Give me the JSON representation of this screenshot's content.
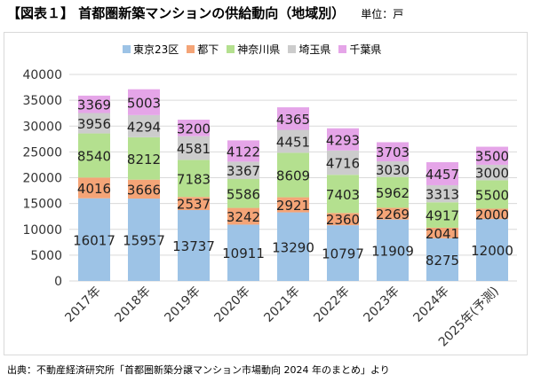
{
  "header": {
    "title": "【図表１】 首都圏新築マンションの供給動向（地域別）",
    "unit": "単位：戸"
  },
  "source_note": "出典：不動産経済研究所「首都圏新築分譲マンション市場動向 2024 年のまとめ」より",
  "chart_data": {
    "type": "bar",
    "stacked": true,
    "categories": [
      "2017年",
      "2018年",
      "2019年",
      "2020年",
      "2021年",
      "2022年",
      "2023年",
      "2024年",
      "2025年(予測)"
    ],
    "series": [
      {
        "name": "東京23区",
        "color": "#9DC3E6",
        "values": [
          16017,
          15957,
          13737,
          10911,
          13290,
          10797,
          11909,
          8275,
          12000
        ]
      },
      {
        "name": "都下",
        "color": "#F4A477",
        "values": [
          4016,
          3666,
          2537,
          3242,
          2921,
          2360,
          2269,
          2041,
          2000
        ]
      },
      {
        "name": "神奈川県",
        "color": "#B4E08F",
        "values": [
          8540,
          8212,
          7183,
          5586,
          8609,
          7403,
          5962,
          4917,
          5500
        ]
      },
      {
        "name": "埼玉県",
        "color": "#CCCCCC",
        "values": [
          3956,
          4294,
          4581,
          3367,
          4451,
          4716,
          3030,
          3313,
          3000
        ]
      },
      {
        "name": "千葉県",
        "color": "#E5A5E8",
        "values": [
          3369,
          5003,
          3200,
          4122,
          4365,
          4293,
          3703,
          4457,
          3500
        ]
      }
    ],
    "ylim": [
      0,
      40000
    ],
    "yticks": [
      0,
      5000,
      10000,
      15000,
      20000,
      25000,
      30000,
      35000,
      40000
    ],
    "grid": true,
    "legend": "top"
  }
}
